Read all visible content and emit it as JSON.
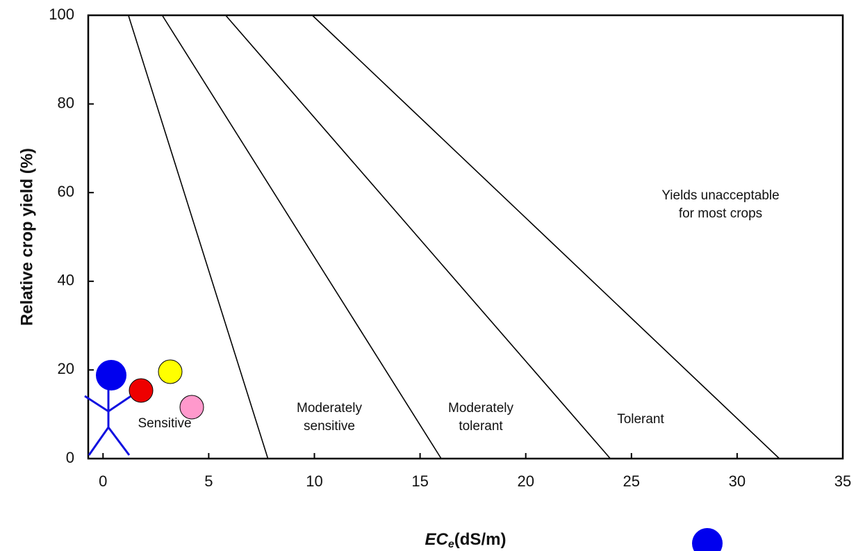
{
  "chart_data": {
    "type": "line",
    "xlabel": {
      "symbol": "EC",
      "subscript": "e",
      "unit": "(dS/m)"
    },
    "ylabel": "Relative crop yield (%)",
    "xlim": [
      -0.7,
      35
    ],
    "ylim": [
      0,
      100
    ],
    "xticks": [
      0,
      5,
      10,
      15,
      20,
      25,
      30,
      35
    ],
    "yticks": [
      0,
      20,
      40,
      60,
      80,
      100
    ],
    "series": [
      {
        "color": "#000000",
        "x": [
          1.2,
          7.8
        ],
        "values": [
          100,
          0
        ]
      },
      {
        "color": "#000000",
        "x": [
          2.8,
          16
        ],
        "values": [
          100,
          0
        ]
      },
      {
        "color": "#000000",
        "x": [
          5.8,
          24
        ],
        "values": [
          100,
          0
        ]
      },
      {
        "color": "#000000",
        "x": [
          9.9,
          32
        ],
        "values": [
          100,
          0
        ]
      }
    ],
    "annotations": [
      [
        "Sensitive"
      ],
      [
        "Moderately",
        "sensitive"
      ],
      [
        "Moderately",
        "tolerant"
      ],
      [
        "Tolerant"
      ],
      [
        "Yields unacceptable",
        "for most crops"
      ]
    ]
  }
}
